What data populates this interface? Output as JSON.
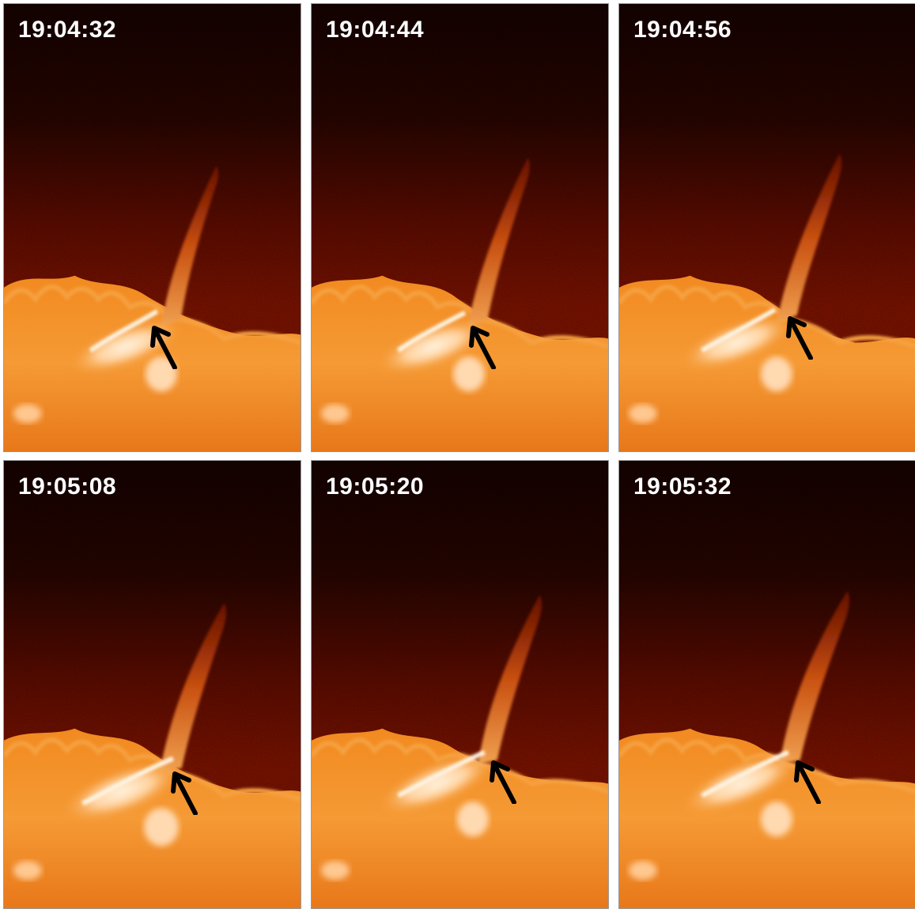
{
  "figure": {
    "panels": [
      {
        "time": "19:04:32"
      },
      {
        "time": "19:04:44"
      },
      {
        "time": "19:04:56"
      },
      {
        "time": "19:05:08"
      },
      {
        "time": "19:05:20"
      },
      {
        "time": "19:05:32"
      }
    ],
    "colors": {
      "sky_top": "#1c0300",
      "sky_mid": "#5a0a00",
      "sky_low": "#8a1400",
      "limb": "#f08a1e",
      "bright": "#ffe0b8",
      "jet": "#d2590f",
      "arrow": "#000000"
    },
    "icons": [
      "arrow-up-left-icon"
    ]
  }
}
